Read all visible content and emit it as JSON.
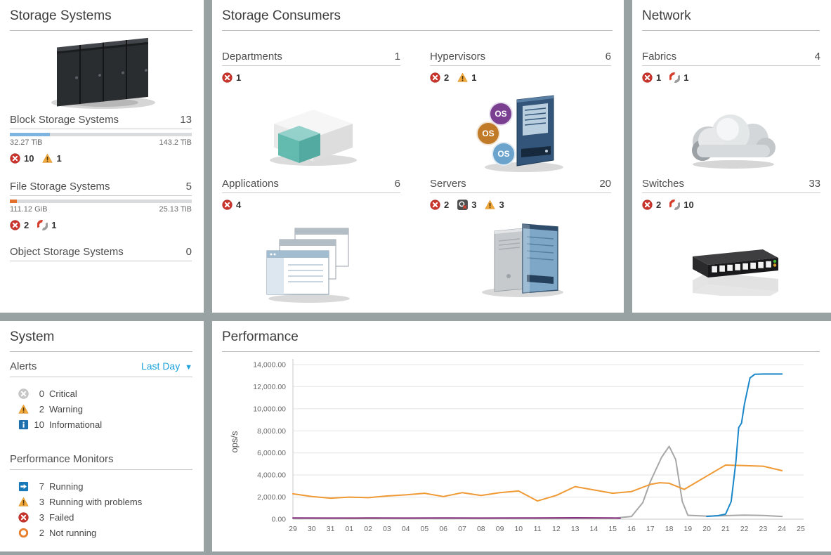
{
  "colors": {
    "accent_blue": "#1ba1dc",
    "status_error": "#c9342c",
    "status_warning": "#f2a93b",
    "status_unreachable_red": "#d5402f",
    "status_info": "#1d6fae",
    "bar_track": "#d9dbdc"
  },
  "storage_systems": {
    "title": "Storage Systems",
    "rows": [
      {
        "label": "Block Storage Systems",
        "value": "13",
        "bar": {
          "fill_pct": 22,
          "fill_color": "#7db4e0"
        },
        "range_left": "32.27 TiB",
        "range_right": "143.2 TiB",
        "statuses": [
          {
            "icon": "error",
            "count": "10"
          },
          {
            "icon": "warning",
            "count": "1"
          }
        ]
      },
      {
        "label": "File Storage Systems",
        "value": "5",
        "bar": {
          "fill_pct": 4,
          "fill_color": "#e4702d"
        },
        "range_left": "111.12 GiB",
        "range_right": "25.13 TiB",
        "statuses": [
          {
            "icon": "error",
            "count": "2"
          },
          {
            "icon": "unreachable",
            "count": "1"
          }
        ]
      },
      {
        "label": "Object Storage Systems",
        "value": "0"
      }
    ]
  },
  "storage_consumers": {
    "title": "Storage Consumers",
    "cells": [
      {
        "label": "Departments",
        "value": "1",
        "statuses": [
          {
            "icon": "error",
            "count": "1"
          }
        ]
      },
      {
        "label": "Hypervisors",
        "value": "6",
        "statuses": [
          {
            "icon": "error",
            "count": "2"
          },
          {
            "icon": "warning",
            "count": "1"
          }
        ]
      },
      {
        "label": "Applications",
        "value": "6",
        "statuses": [
          {
            "icon": "error",
            "count": "4"
          }
        ]
      },
      {
        "label": "Servers",
        "value": "20",
        "statuses": [
          {
            "icon": "error",
            "count": "2"
          },
          {
            "icon": "probe-fail",
            "count": "3"
          },
          {
            "icon": "warning",
            "count": "3"
          }
        ]
      }
    ]
  },
  "network": {
    "title": "Network",
    "rows": [
      {
        "label": "Fabrics",
        "value": "4",
        "statuses": [
          {
            "icon": "error",
            "count": "1"
          },
          {
            "icon": "unreachable",
            "count": "1"
          }
        ]
      },
      {
        "label": "Switches",
        "value": "33",
        "statuses": [
          {
            "icon": "error",
            "count": "2"
          },
          {
            "icon": "unreachable",
            "count": "10"
          }
        ]
      }
    ]
  },
  "system": {
    "title": "System",
    "alerts": {
      "heading": "Alerts",
      "filter_label": "Last Day",
      "items": [
        {
          "icon": "critical",
          "count": "0",
          "label": "Critical"
        },
        {
          "icon": "warning",
          "count": "2",
          "label": "Warning"
        },
        {
          "icon": "info",
          "count": "10",
          "label": "Informational"
        }
      ]
    },
    "performance_monitors": {
      "heading": "Performance Monitors",
      "items": [
        {
          "icon": "running",
          "count": "7",
          "label": "Running"
        },
        {
          "icon": "warning",
          "count": "3",
          "label": "Running with problems"
        },
        {
          "icon": "error",
          "count": "3",
          "label": "Failed"
        },
        {
          "icon": "not-running",
          "count": "2",
          "label": "Not running"
        }
      ]
    }
  },
  "performance": {
    "title": "Performance"
  },
  "chart_data": {
    "type": "line",
    "title": "Performance",
    "xlabel": "",
    "ylabel": "ops/s",
    "ylim": [
      0,
      14000
    ],
    "grid": "horizontal",
    "legend": "none",
    "yticks": [
      {
        "value": 0,
        "label": "0.00"
      },
      {
        "value": 2000,
        "label": "2,000.00"
      },
      {
        "value": 4000,
        "label": "4,000.00"
      },
      {
        "value": 6000,
        "label": "6,000.00"
      },
      {
        "value": 8000,
        "label": "8,000.00"
      },
      {
        "value": 10000,
        "label": "10,000.00"
      },
      {
        "value": 12000,
        "label": "12,000.00"
      },
      {
        "value": 14000,
        "label": "14,000.00"
      }
    ],
    "x_labels": [
      "29",
      "30",
      "31",
      "01",
      "02",
      "03",
      "04",
      "05",
      "06",
      "07",
      "08",
      "09",
      "10",
      "11",
      "12",
      "13",
      "14",
      "15",
      "16",
      "17",
      "18",
      "19",
      "20",
      "21",
      "22",
      "23",
      "24",
      "25"
    ],
    "series": [
      {
        "name": "gray",
        "color": "#a7a7a7",
        "points": [
          [
            0,
            70
          ],
          [
            2,
            60
          ],
          [
            4,
            70
          ],
          [
            6,
            60
          ],
          [
            8,
            70
          ],
          [
            10,
            60
          ],
          [
            12,
            70
          ],
          [
            14,
            60
          ],
          [
            16,
            70
          ],
          [
            17,
            80
          ],
          [
            18,
            250
          ],
          [
            18.6,
            1500
          ],
          [
            19,
            3400
          ],
          [
            19.6,
            5600
          ],
          [
            20,
            6600
          ],
          [
            20.35,
            5400
          ],
          [
            20.7,
            1600
          ],
          [
            21,
            350
          ],
          [
            22,
            280
          ],
          [
            23,
            320
          ],
          [
            24,
            360
          ],
          [
            25,
            340
          ],
          [
            26,
            250
          ]
        ]
      },
      {
        "name": "green",
        "color": "#94a877",
        "points": [
          [
            2.8,
            80
          ],
          [
            3.5,
            70
          ],
          [
            4.6,
            80
          ]
        ]
      },
      {
        "name": "purple",
        "color": "#8a3080",
        "points": [
          [
            0,
            110
          ],
          [
            2,
            100
          ],
          [
            4,
            110
          ],
          [
            6,
            100
          ],
          [
            8,
            110
          ],
          [
            10,
            100
          ],
          [
            12,
            110
          ],
          [
            14,
            120
          ],
          [
            15,
            130
          ],
          [
            16,
            120
          ],
          [
            17,
            110
          ],
          [
            17.4,
            90
          ]
        ]
      },
      {
        "name": "orange",
        "color": "#ef9a35",
        "points": [
          [
            0,
            2300
          ],
          [
            1,
            2050
          ],
          [
            2,
            1900
          ],
          [
            3,
            2000
          ],
          [
            4,
            1950
          ],
          [
            5,
            2100
          ],
          [
            6,
            2200
          ],
          [
            7,
            2350
          ],
          [
            8,
            2050
          ],
          [
            9,
            2400
          ],
          [
            10,
            2150
          ],
          [
            11,
            2400
          ],
          [
            12,
            2550
          ],
          [
            13,
            1650
          ],
          [
            14,
            2150
          ],
          [
            15,
            2950
          ],
          [
            16,
            2650
          ],
          [
            17,
            2350
          ],
          [
            18,
            2500
          ],
          [
            19,
            3150
          ],
          [
            19.5,
            3300
          ],
          [
            20,
            3250
          ],
          [
            20.8,
            2700
          ],
          [
            21.5,
            3400
          ],
          [
            22,
            3900
          ],
          [
            23,
            4900
          ],
          [
            24,
            4850
          ],
          [
            25,
            4800
          ],
          [
            26,
            4400
          ]
        ]
      },
      {
        "name": "blue",
        "color": "#1b87c9",
        "points": [
          [
            22,
            250
          ],
          [
            22.6,
            320
          ],
          [
            23,
            450
          ],
          [
            23.3,
            1600
          ],
          [
            23.55,
            5200
          ],
          [
            23.7,
            8300
          ],
          [
            23.85,
            8700
          ],
          [
            24,
            10400
          ],
          [
            24.3,
            12800
          ],
          [
            24.55,
            13120
          ],
          [
            25,
            13150
          ],
          [
            26,
            13150
          ]
        ]
      }
    ]
  }
}
